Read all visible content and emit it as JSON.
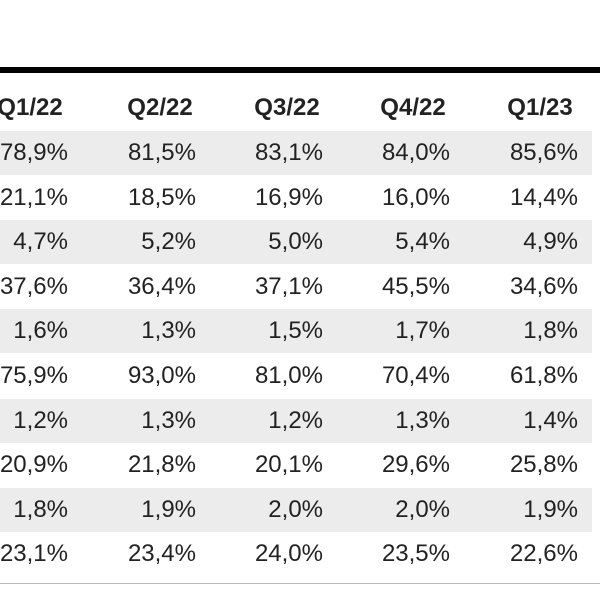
{
  "table": {
    "header": [
      "Q1/22",
      "Q2/22",
      "Q3/22",
      "Q4/22",
      "Q1/23"
    ],
    "rows": [
      [
        "78,9%",
        "81,5%",
        "83,1%",
        "84,0%",
        "85,6%"
      ],
      [
        "21,1%",
        "18,5%",
        "16,9%",
        "16,0%",
        "14,4%"
      ],
      [
        "4,7%",
        "5,2%",
        "5,0%",
        "5,4%",
        "4,9%"
      ],
      [
        "37,6%",
        "36,4%",
        "37,1%",
        "45,5%",
        "34,6%"
      ],
      [
        "1,6%",
        "1,3%",
        "1,5%",
        "1,7%",
        "1,8%"
      ],
      [
        "75,9%",
        "93,0%",
        "81,0%",
        "70,4%",
        "61,8%"
      ],
      [
        "1,2%",
        "1,3%",
        "1,2%",
        "1,3%",
        "1,4%"
      ],
      [
        "20,9%",
        "21,8%",
        "20,1%",
        "29,6%",
        "25,8%"
      ],
      [
        "1,8%",
        "1,9%",
        "2,0%",
        "2,0%",
        "1,9%"
      ],
      [
        "23,1%",
        "23,4%",
        "24,0%",
        "23,5%",
        "22,6%"
      ]
    ]
  }
}
